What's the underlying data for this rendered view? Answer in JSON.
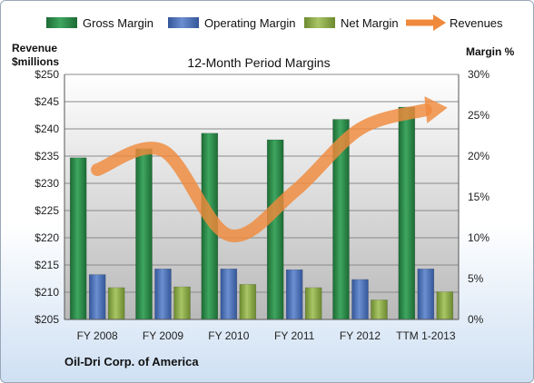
{
  "chart_data": {
    "type": "bar",
    "title": "12-Month Period Margins",
    "left_axis_label_line1": "Revenue",
    "left_axis_label_line2": "$millions",
    "right_axis_label": "Margin %",
    "company": "Oil-Dri Corp. of America",
    "categories": [
      "FY 2008",
      "FY 2009",
      "FY 2010",
      "FY 2011",
      "FY 2012",
      "TTM 1-2013"
    ],
    "left_ylim": [
      205,
      250
    ],
    "left_ticks": [
      "$205",
      "$210",
      "$215",
      "$220",
      "$225",
      "$230",
      "$235",
      "$240",
      "$245",
      "$250"
    ],
    "right_ylim": [
      0,
      30
    ],
    "right_ticks": [
      "0%",
      "5%",
      "10%",
      "15%",
      "20%",
      "25%",
      "30%"
    ],
    "grid": true,
    "legend_position": "top",
    "series": [
      {
        "name": "Gross Margin",
        "type": "bar",
        "axis": "right",
        "color": "#2e8b4a",
        "values": [
          19.8,
          20.9,
          22.8,
          22.0,
          24.5,
          26.0
        ]
      },
      {
        "name": "Operating Margin",
        "type": "bar",
        "axis": "right",
        "color": "#4f73b8",
        "values": [
          5.5,
          6.2,
          6.2,
          6.1,
          4.9,
          6.2
        ]
      },
      {
        "name": "Net Margin",
        "type": "bar",
        "axis": "right",
        "color": "#8fae4a",
        "values": [
          3.9,
          4.0,
          4.3,
          3.9,
          2.4,
          3.4
        ]
      },
      {
        "name": "Revenues",
        "type": "line",
        "axis": "left",
        "color": "#ef8a3c",
        "values": [
          232.5,
          236.0,
          220.5,
          228.5,
          240.0,
          243.5
        ]
      }
    ]
  }
}
